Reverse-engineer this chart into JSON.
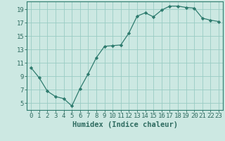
{
  "x": [
    0,
    1,
    2,
    3,
    4,
    5,
    6,
    7,
    8,
    9,
    10,
    11,
    12,
    13,
    14,
    15,
    16,
    17,
    18,
    19,
    20,
    21,
    22,
    23
  ],
  "y": [
    10.3,
    8.8,
    6.8,
    6.0,
    5.7,
    4.6,
    7.2,
    9.4,
    11.8,
    13.5,
    13.6,
    13.7,
    15.5,
    18.0,
    18.5,
    17.9,
    18.9,
    19.5,
    19.5,
    19.3,
    19.2,
    17.7,
    17.4,
    17.2
  ],
  "line_color": "#2e7b6e",
  "marker": "D",
  "markersize": 2.2,
  "bg_color": "#cce8e2",
  "grid_color": "#99ccc4",
  "xlabel": "Humidex (Indice chaleur)",
  "xlim": [
    -0.5,
    23.5
  ],
  "ylim": [
    4,
    20.2
  ],
  "yticks": [
    5,
    7,
    9,
    11,
    13,
    15,
    17,
    19
  ],
  "xticks": [
    0,
    1,
    2,
    3,
    4,
    5,
    6,
    7,
    8,
    9,
    10,
    11,
    12,
    13,
    14,
    15,
    16,
    17,
    18,
    19,
    20,
    21,
    22,
    23
  ],
  "tick_color": "#2e6b60",
  "spine_color": "#2e7b6e",
  "xlabel_fontsize": 7.5,
  "tick_fontsize": 6.5
}
